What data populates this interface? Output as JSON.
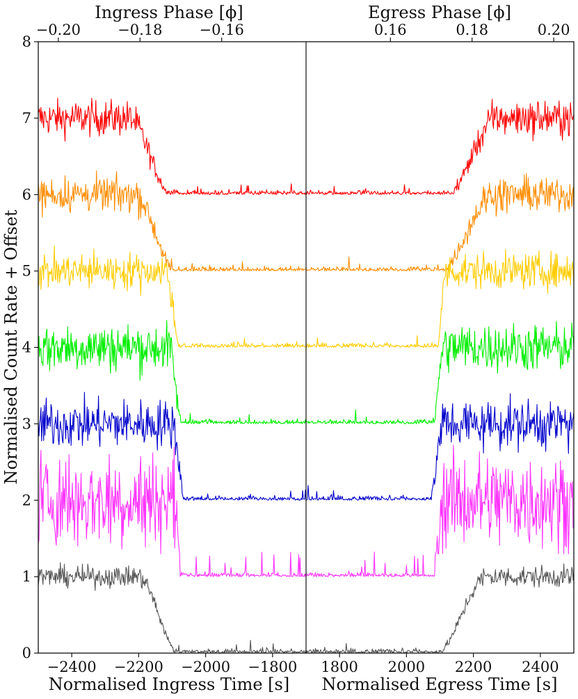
{
  "chart_data": {
    "type": "line",
    "xlabel_left": "Normalised Ingress Time [s]",
    "xlabel_right": "Normalised Egress Time [s]",
    "top_xlabel_left": "Ingress Phase [ϕ]",
    "top_xlabel_right": "Egress Phase [ϕ]",
    "ylabel": "Normalised Count Rate + Offset",
    "ylim": [
      0,
      8
    ],
    "xlim_left": [
      -2500,
      -1700
    ],
    "xlim_right": [
      1700,
      2500
    ],
    "y_ticks": [
      "0",
      "1",
      "2",
      "3",
      "4",
      "5",
      "6",
      "7",
      "8"
    ],
    "x_ticks_left": [
      "−2400",
      "−2200",
      "−2000",
      "−1800"
    ],
    "x_ticks_right": [
      "1800",
      "2000",
      "2200",
      "2400"
    ],
    "top_ticks_left": [
      "−0.20",
      "−0.18",
      "−0.16"
    ],
    "top_ticks_right": [
      "0.16",
      "0.18",
      "0.20"
    ],
    "grid": false,
    "series": [
      {
        "color": "#ff0000",
        "offset": 6,
        "ingress_start": -2230,
        "ingress_end": -2100,
        "egress_start": 2120,
        "egress_end": 2270,
        "noise": 0.22,
        "spiky": false
      },
      {
        "color": "#ff8c00",
        "offset": 5,
        "ingress_start": -2210,
        "ingress_end": -2090,
        "egress_start": 2100,
        "egress_end": 2260,
        "noise": 0.22,
        "spiky": false
      },
      {
        "color": "#ffcc00",
        "offset": 4,
        "ingress_start": -2120,
        "ingress_end": -2075,
        "egress_start": 2090,
        "egress_end": 2120,
        "noise": 0.22,
        "spiky": false
      },
      {
        "color": "#00ee00",
        "offset": 3,
        "ingress_start": -2110,
        "ingress_end": -2070,
        "egress_start": 2080,
        "egress_end": 2110,
        "noise": 0.3,
        "spiky": false
      },
      {
        "color": "#0000cc",
        "offset": 2,
        "ingress_start": -2100,
        "ingress_end": -2060,
        "egress_start": 2070,
        "egress_end": 2110,
        "noise": 0.3,
        "spiky": false
      },
      {
        "color": "#ff33ff",
        "offset": 1,
        "ingress_start": -2090,
        "ingress_end": -2075,
        "egress_start": 2080,
        "egress_end": 2110,
        "noise": 0.6,
        "spiky": true
      },
      {
        "color": "#555555",
        "offset": 0,
        "ingress_start": -2200,
        "ingress_end": -2080,
        "egress_start": 2090,
        "egress_end": 2240,
        "noise": 0.13,
        "spiky": false
      }
    ]
  }
}
